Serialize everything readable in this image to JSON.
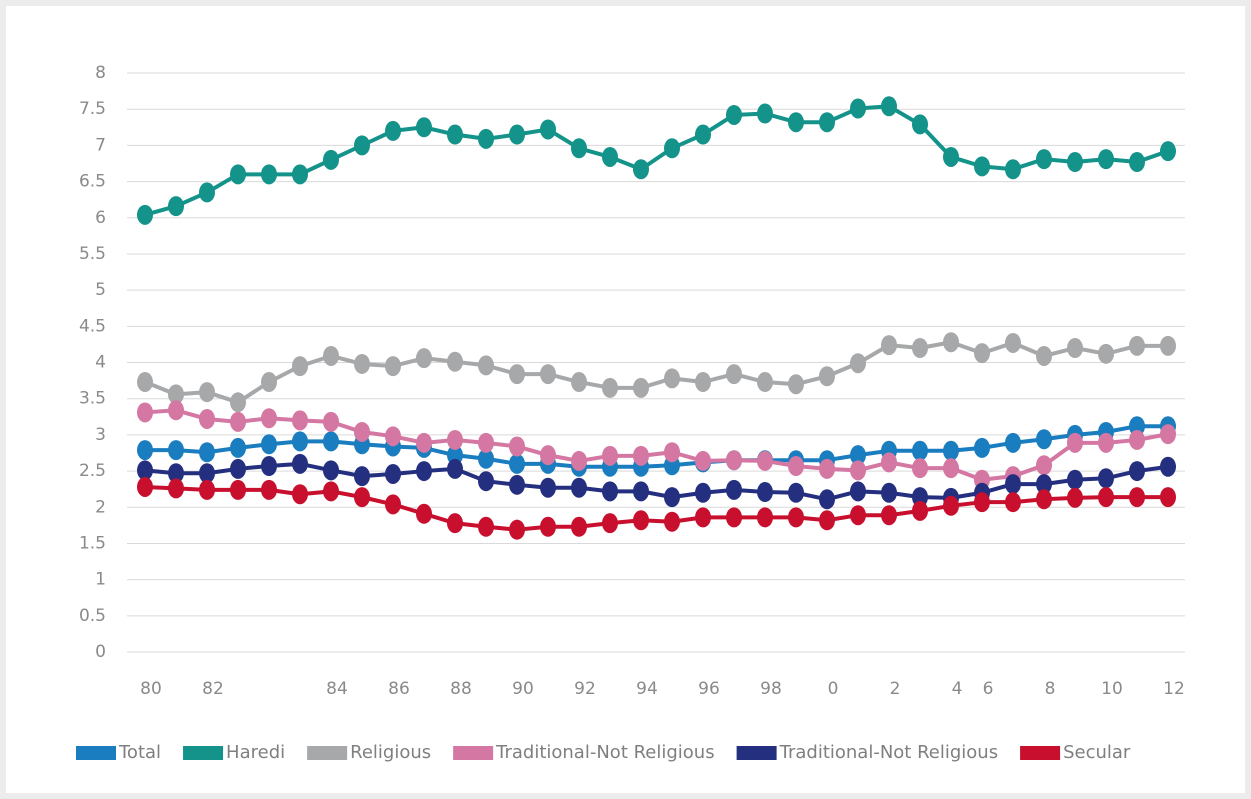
{
  "chart_data": {
    "type": "line",
    "categories": [
      "80",
      null,
      "82",
      null,
      null,
      null,
      "84",
      null,
      "86",
      null,
      "88",
      null,
      "90",
      null,
      "92",
      null,
      "94",
      null,
      "96",
      null,
      "98",
      null,
      "0",
      null,
      "2",
      null,
      "4",
      "6",
      null,
      "8",
      null,
      "10",
      null,
      "12"
    ],
    "ylim": [
      0,
      8
    ],
    "yticks": [
      0,
      0.5,
      1,
      1.5,
      2,
      2.5,
      3,
      3.5,
      4,
      4.5,
      5,
      5.5,
      6,
      6.5,
      7,
      7.5,
      8
    ],
    "grid": true,
    "legend": "bottom",
    "series": [
      {
        "name": "Total",
        "color": "#1a7dbf",
        "values": [
          2.79,
          2.79,
          2.76,
          2.82,
          2.87,
          2.91,
          2.91,
          2.87,
          2.84,
          2.82,
          2.72,
          2.67,
          2.6,
          2.6,
          2.56,
          2.56,
          2.56,
          2.58,
          2.62,
          2.65,
          2.65,
          2.65,
          2.65,
          2.72,
          2.78,
          2.78,
          2.78,
          2.82,
          2.89,
          2.94,
          3.0,
          3.04,
          3.12,
          3.12
        ]
      },
      {
        "name": "Haredi",
        "color": "#13938a",
        "values": [
          6.04,
          6.16,
          6.35,
          6.6,
          6.6,
          6.6,
          6.8,
          7.0,
          7.2,
          7.25,
          7.15,
          7.09,
          7.15,
          7.22,
          6.96,
          6.84,
          6.67,
          6.96,
          7.15,
          7.42,
          7.44,
          7.32,
          7.32,
          7.51,
          7.54,
          7.29,
          6.84,
          6.71,
          6.67,
          6.81,
          6.77,
          6.81,
          6.77,
          6.92
        ]
      },
      {
        "name": "Religious",
        "color": "#a7a8aa",
        "values": [
          3.73,
          3.56,
          3.59,
          3.45,
          3.73,
          3.95,
          4.09,
          3.98,
          3.95,
          4.06,
          4.01,
          3.96,
          3.84,
          3.84,
          3.73,
          3.65,
          3.65,
          3.78,
          3.73,
          3.84,
          3.73,
          3.7,
          3.81,
          3.99,
          4.24,
          4.2,
          4.28,
          4.13,
          4.27,
          4.09,
          4.2,
          4.12,
          4.23,
          4.23
        ]
      },
      {
        "name": "Traditional-Not Religious",
        "color": "#d477a2",
        "values": [
          3.31,
          3.34,
          3.22,
          3.18,
          3.23,
          3.2,
          3.18,
          3.04,
          2.98,
          2.89,
          2.93,
          2.89,
          2.84,
          2.72,
          2.64,
          2.71,
          2.71,
          2.76,
          2.64,
          2.65,
          2.64,
          2.57,
          2.53,
          2.51,
          2.62,
          2.54,
          2.54,
          2.38,
          2.43,
          2.58,
          2.89,
          2.89,
          2.93,
          3.01
        ]
      },
      {
        "name": "Traditional-Not Religious",
        "color": "#24307f",
        "values": [
          2.51,
          2.47,
          2.47,
          2.53,
          2.57,
          2.6,
          2.51,
          2.43,
          2.46,
          2.5,
          2.53,
          2.36,
          2.31,
          2.27,
          2.27,
          2.22,
          2.22,
          2.14,
          2.2,
          2.24,
          2.21,
          2.2,
          2.11,
          2.22,
          2.2,
          2.14,
          2.13,
          2.2,
          2.32,
          2.32,
          2.38,
          2.4,
          2.5,
          2.56
        ]
      },
      {
        "name": "Secular",
        "color": "#c8102e",
        "values": [
          2.28,
          2.26,
          2.24,
          2.24,
          2.24,
          2.18,
          2.22,
          2.14,
          2.04,
          1.91,
          1.78,
          1.73,
          1.69,
          1.73,
          1.73,
          1.78,
          1.82,
          1.8,
          1.86,
          1.86,
          1.86,
          1.86,
          1.82,
          1.89,
          1.89,
          1.95,
          2.02,
          2.07,
          2.07,
          2.11,
          2.13,
          2.14,
          2.14,
          2.14
        ]
      }
    ]
  }
}
